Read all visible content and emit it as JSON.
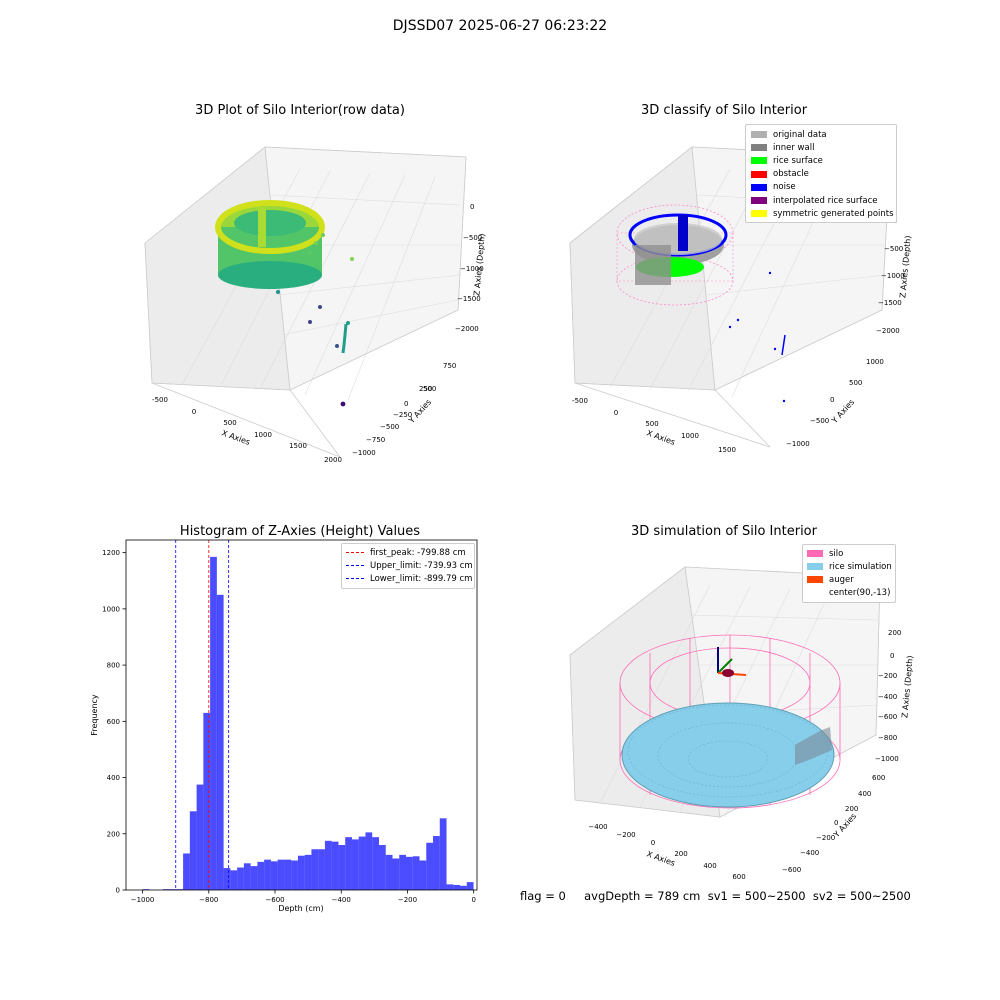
{
  "suptitle": "DJSSD07 2025-06-27 06:23:22",
  "panels": {
    "raw": {
      "title": "3D Plot of Silo Interior(row data)",
      "xlabel": "X Axies",
      "ylabel": "Y Axies",
      "zlabel": "Z Axies (Depth)",
      "xticks": [
        "-500",
        "0",
        "500",
        "1000",
        "1500",
        "2000"
      ],
      "yticks": [
        "750",
        "500",
        "250",
        "0",
        "−250",
        "−500",
        "−750",
        "−1000"
      ],
      "zticks": [
        "0",
        "−500",
        "−1000",
        "−1500",
        "−2000"
      ]
    },
    "classify": {
      "title": "3D classify of Silo Interior",
      "xlabel": "X Axies",
      "ylabel": "Y Axies",
      "zlabel": "Z Axies (Depth)",
      "xticks": [
        "-500",
        "0",
        "500",
        "1000",
        "1500"
      ],
      "yticks": [
        "1000",
        "500",
        "0",
        "−500",
        "−1000"
      ],
      "zticks": [
        "0",
        "−500",
        "−1000",
        "−1500",
        "−2000"
      ],
      "legend": [
        {
          "label": "original data",
          "color": "#b0b0b0"
        },
        {
          "label": "inner wall",
          "color": "#808080"
        },
        {
          "label": "rice surface",
          "color": "#00ff00"
        },
        {
          "label": "obstacle",
          "color": "#ff0000"
        },
        {
          "label": "noise",
          "color": "#0000ff"
        },
        {
          "label": "interpolated rice surface",
          "color": "#800080"
        },
        {
          "label": "symmetric generated points",
          "color": "#ffff00"
        }
      ]
    },
    "simulation": {
      "title": "3D simulation of Silo Interior",
      "xlabel": "X Axies",
      "ylabel": "Y Axies",
      "zlabel": "Z Axies (Depth)",
      "xticks": [
        "−400",
        "−200",
        "0",
        "200",
        "400",
        "600"
      ],
      "yticks": [
        "600",
        "400",
        "200",
        "0",
        "−200",
        "−400",
        "−600"
      ],
      "zticks": [
        "200",
        "0",
        "−200",
        "−400",
        "−600",
        "−800",
        "−1000"
      ],
      "legend": [
        {
          "label": "silo",
          "color": "#ff69b4"
        },
        {
          "label": "rice simulation",
          "color": "#87ceeb"
        },
        {
          "label": "auger",
          "color": "#ff4500"
        },
        {
          "label": "center(90,-13)",
          "color": "#ffffff"
        }
      ]
    }
  },
  "status": "flag = 0     avgDepth = 789 cm  sv1 = 500~2500  sv2 = 500~2500",
  "chart_data": {
    "type": "bar",
    "title": "Histogram of Z-Axies (Height) Values",
    "xlabel": "Depth (cm)",
    "ylabel": "Frequency",
    "xlim": [
      -1050,
      10
    ],
    "ylim": [
      0,
      1245
    ],
    "xticks": [
      -1000,
      -800,
      -600,
      -400,
      -200,
      0
    ],
    "yticks": [
      0,
      200,
      400,
      600,
      800,
      1000,
      1200
    ],
    "bar_color": "#0000ff",
    "bin_width": 20.4,
    "bin_starts": [
      -1000,
      -979.6,
      -959.2,
      -938.8,
      -918.4,
      -898,
      -877.6,
      -857.2,
      -836.8,
      -816.4,
      -796,
      -775.6,
      -755.2,
      -734.8,
      -714.4,
      -694,
      -673.6,
      -653.2,
      -632.8,
      -612.4,
      -592,
      -571.6,
      -551.2,
      -530.8,
      -510.4,
      -490,
      -469.6,
      -449.2,
      -428.8,
      -408.4,
      -388,
      -367.6,
      -347.2,
      -326.8,
      -306.4,
      -286,
      -265.6,
      -245.2,
      -224.8,
      -204.4,
      -184,
      -163.6,
      -143.2,
      -122.8,
      -102.4,
      -82,
      -61.6,
      -41.2,
      -20.8
    ],
    "values": [
      3,
      0,
      0,
      3,
      3,
      3,
      130,
      280,
      375,
      630,
      1185,
      1050,
      78,
      70,
      80,
      95,
      85,
      100,
      108,
      102,
      108,
      108,
      105,
      122,
      125,
      145,
      145,
      175,
      172,
      160,
      188,
      180,
      190,
      205,
      188,
      160,
      125,
      112,
      125,
      118,
      120,
      105,
      168,
      192,
      255,
      20,
      18,
      15,
      28
    ],
    "lines": [
      {
        "label": "first_peak: -799.88 cm",
        "x": -799.88,
        "color": "#ff0000"
      },
      {
        "label": "Upper_limit: -739.93 cm",
        "x": -739.93,
        "color": "#0000ff"
      },
      {
        "label": "Lower_limit: -899.79 cm",
        "x": -899.79,
        "color": "#0000ff"
      }
    ]
  }
}
